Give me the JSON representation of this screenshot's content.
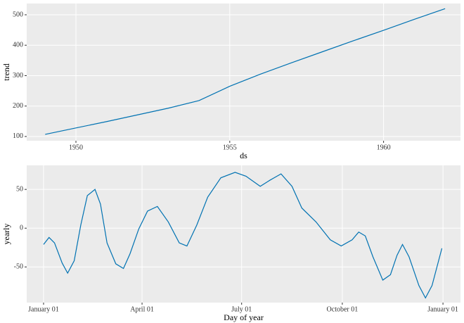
{
  "chart_data": [
    {
      "type": "line",
      "y_label": "trend",
      "x_label": "ds",
      "x": [
        1949,
        1950,
        1951,
        1952,
        1953,
        1954,
        1955,
        1956,
        1957,
        1958,
        1959,
        1960,
        1961,
        1962
      ],
      "series": [
        {
          "color": "#0072B2",
          "values": [
            107,
            128,
            149,
            171,
            193,
            218,
            265,
            305,
            342,
            378,
            414,
            449,
            485,
            520
          ]
        }
      ],
      "xlim": [
        1948.4,
        1962.5
      ],
      "xticks": [
        1950,
        1955,
        1960
      ],
      "ylim": [
        86,
        537
      ],
      "yticks": [
        100,
        200,
        300,
        400,
        500
      ],
      "grid": true
    },
    {
      "type": "line",
      "y_label": "yearly",
      "x_label": "Day of year",
      "x": [
        0,
        5,
        10,
        17,
        22,
        28,
        34,
        40,
        47,
        52,
        58,
        66,
        73,
        79,
        87,
        95,
        104,
        114,
        124,
        131,
        140,
        150,
        162,
        175,
        185,
        198,
        207,
        217,
        227,
        236,
        249,
        262,
        272,
        282,
        288,
        294,
        301,
        310,
        317,
        323,
        328,
        334,
        343,
        349,
        355,
        364
      ],
      "series": [
        {
          "color": "#0072B2",
          "values": [
            -21,
            -12,
            -19,
            -45,
            -58,
            -42,
            4,
            42,
            50,
            31,
            -19,
            -46,
            -52,
            -33,
            -1,
            22,
            28,
            8,
            -19,
            -23,
            4,
            40,
            65,
            72,
            67,
            54,
            62,
            70,
            54,
            26,
            8,
            -15,
            -23,
            -15,
            -5,
            -10,
            -37,
            -67,
            -60,
            -35,
            -21,
            -37,
            -74,
            -90,
            -74,
            -26
          ]
        }
      ],
      "xlim": [
        -15.4,
        381
      ],
      "xticks": [
        {
          "value": 0,
          "label": "January 01"
        },
        {
          "value": 90,
          "label": "April 01"
        },
        {
          "value": 181,
          "label": "July 01"
        },
        {
          "value": 273,
          "label": "October 01"
        },
        {
          "value": 365,
          "label": "January 01"
        }
      ],
      "ylim": [
        -96,
        81
      ],
      "yticks": [
        -50,
        0,
        50
      ],
      "grid": true
    }
  ]
}
